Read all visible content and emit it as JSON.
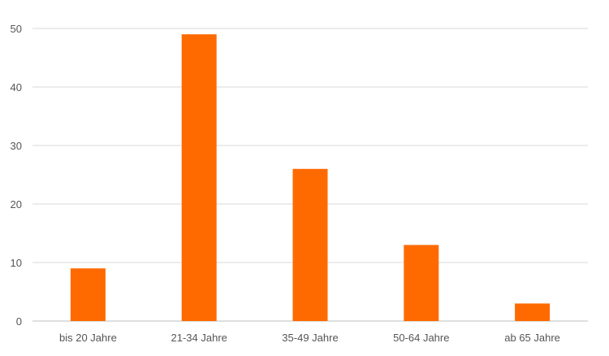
{
  "chart_data": {
    "type": "bar",
    "title": "",
    "xlabel": "",
    "ylabel": "",
    "categories": [
      "bis 20 Jahre",
      "21-34 Jahre",
      "35-49 Jahre",
      "50-64 Jahre",
      "ab 65 Jahre"
    ],
    "values": [
      9,
      49,
      26,
      13,
      3
    ],
    "ylim": [
      0,
      50
    ],
    "yticks": [
      0,
      10,
      20,
      30,
      40,
      50
    ],
    "grid": true,
    "legend": "none",
    "bar_color": "#ff6a00"
  }
}
